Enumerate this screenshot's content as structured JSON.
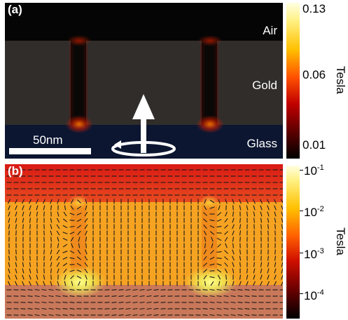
{
  "panel_a": {
    "label": "(a)",
    "layers": {
      "air": "Air",
      "gold": "Gold",
      "glass": "Glass"
    },
    "scale_bar": "50nm",
    "colors": {
      "air": "#050505",
      "gold": "#2f2c2a",
      "glass": "#0d1830",
      "hotspot": "#ff2a00"
    }
  },
  "panel_b": {
    "label": "(b)",
    "colors": {
      "air": "#e0301a",
      "gold": "#f5a020",
      "glass": "#c87a55",
      "hotspot": "#fff060"
    }
  },
  "colorbar_a": {
    "unit": "Tesla",
    "ticks": [
      "0.13",
      "0.06",
      "0.01"
    ]
  },
  "colorbar_b": {
    "unit": "Tesla",
    "ticks": [
      {
        "base": "10",
        "exp": "-1"
      },
      {
        "base": "10",
        "exp": "-2"
      },
      {
        "base": "10",
        "exp": "-3"
      },
      {
        "base": "10",
        "exp": "-4"
      }
    ]
  }
}
